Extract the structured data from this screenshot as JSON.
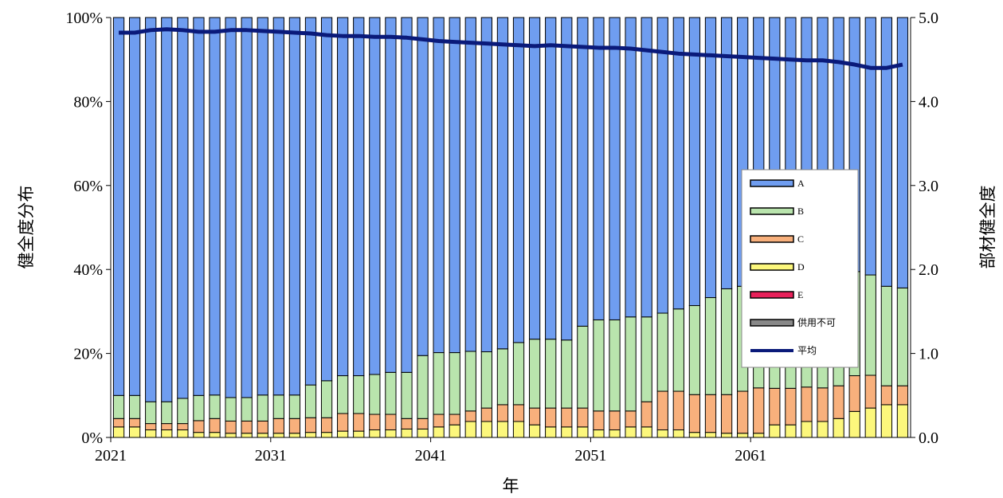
{
  "chart_data": {
    "type": "bar",
    "stacked": true,
    "xlabel": "年",
    "ylabel": "健全度分布",
    "y2label": "部材健全度",
    "ylim": [
      0,
      100
    ],
    "y2lim": [
      0,
      5
    ],
    "yticks": [
      "0%",
      "20%",
      "40%",
      "60%",
      "80%",
      "100%"
    ],
    "y2ticks": [
      "0.0",
      "1.0",
      "2.0",
      "3.0",
      "4.0",
      "5.0"
    ],
    "xtick_labels": [
      {
        "index": 0,
        "label": "2021"
      },
      {
        "index": 10,
        "label": "2031"
      },
      {
        "index": 20,
        "label": "2041"
      },
      {
        "index": 30,
        "label": "2051"
      },
      {
        "index": 40,
        "label": "2061"
      }
    ],
    "legend_position": "right",
    "colors": {
      "A": "#6f9df0",
      "B": "#b9e4ad",
      "C": "#f8b07c",
      "D": "#fcf77c",
      "E": "#e8205a",
      "供用不可": "#888888",
      "平均": "#0a1a7a"
    },
    "categories": [
      "2021",
      "2022",
      "2023",
      "2024",
      "2025",
      "2026",
      "2027",
      "2028",
      "2029",
      "2030",
      "2031",
      "2032",
      "2033",
      "2034",
      "2035",
      "2036",
      "2037",
      "2038",
      "2039",
      "2040",
      "2041",
      "2042",
      "2043",
      "2044",
      "2045",
      "2046",
      "2047",
      "2048",
      "2049",
      "2050",
      "2051",
      "2052",
      "2053",
      "2054",
      "2055",
      "2056",
      "2057",
      "2058",
      "2059",
      "2060",
      "2061",
      "2062",
      "2063",
      "2064",
      "2065",
      "2066",
      "2067",
      "2068",
      "2069",
      "2070"
    ],
    "series": [
      {
        "name": "供用不可",
        "kind": "bar",
        "values": [
          0,
          0,
          0,
          0,
          0,
          0,
          0,
          0,
          0,
          0,
          0,
          0,
          0,
          0,
          0,
          0,
          0,
          0,
          0,
          0,
          0,
          0,
          0,
          0,
          0,
          0,
          0,
          0,
          0,
          0,
          0,
          0,
          0,
          0,
          0,
          0,
          0,
          0,
          0,
          0,
          0,
          0,
          0,
          0,
          0,
          0,
          0,
          0,
          0,
          0
        ]
      },
      {
        "name": "E",
        "kind": "bar",
        "values": [
          0,
          0,
          0,
          0,
          0,
          0,
          0,
          0,
          0,
          0,
          0,
          0,
          0,
          0,
          0,
          0,
          0,
          0,
          0,
          0,
          0,
          0,
          0,
          0,
          0,
          0,
          0,
          0,
          0,
          0,
          0,
          0,
          0,
          0,
          0,
          0,
          0,
          0,
          0,
          0,
          0,
          0,
          0,
          0,
          0,
          0,
          0,
          0,
          0,
          0
        ]
      },
      {
        "name": "D",
        "kind": "bar",
        "values": [
          2.5,
          2.5,
          1.8,
          1.8,
          1.8,
          1.2,
          1.2,
          1.0,
          1.0,
          1.0,
          1.0,
          1.0,
          1.2,
          1.2,
          1.5,
          1.5,
          1.8,
          1.8,
          2.0,
          2.0,
          2.5,
          3.0,
          3.8,
          3.8,
          3.8,
          3.8,
          3.0,
          2.5,
          2.5,
          2.5,
          1.8,
          1.8,
          2.5,
          2.5,
          1.8,
          1.8,
          1.2,
          1.2,
          1.0,
          1.0,
          1.0,
          3.0,
          3.0,
          3.8,
          3.8,
          4.5,
          6.2,
          7.0,
          7.8,
          7.8
        ]
      },
      {
        "name": "C",
        "kind": "bar",
        "values": [
          2.0,
          2.0,
          1.5,
          1.5,
          1.5,
          2.8,
          3.3,
          2.9,
          2.9,
          2.9,
          3.5,
          3.5,
          3.5,
          3.5,
          4.2,
          4.2,
          3.7,
          3.7,
          2.5,
          2.5,
          3.0,
          2.5,
          2.5,
          3.2,
          4.0,
          4.0,
          4.0,
          4.5,
          4.5,
          4.5,
          4.5,
          4.5,
          3.8,
          6.0,
          9.2,
          9.2,
          9.0,
          9.0,
          9.2,
          10.0,
          10.8,
          8.7,
          8.7,
          8.2,
          8.0,
          7.8,
          8.5,
          7.8,
          4.5,
          4.5
        ]
      },
      {
        "name": "B",
        "kind": "bar",
        "values": [
          5.5,
          5.5,
          5.2,
          5.2,
          6.0,
          6.0,
          5.6,
          5.6,
          5.6,
          6.2,
          5.6,
          5.6,
          7.8,
          8.8,
          9.0,
          9.0,
          9.5,
          10.0,
          11.0,
          15.0,
          14.7,
          14.7,
          14.2,
          13.4,
          13.3,
          14.8,
          16.4,
          16.4,
          16.2,
          19.5,
          21.7,
          21.7,
          22.4,
          20.2,
          18.6,
          19.6,
          21.2,
          23.1,
          25.2,
          25.0,
          24.2,
          25.3,
          25.3,
          25.0,
          25.2,
          25.7,
          24.8,
          23.9,
          23.7,
          23.3
        ]
      },
      {
        "name": "A",
        "kind": "bar",
        "values": [
          90.0,
          90.0,
          91.5,
          91.5,
          90.7,
          90.0,
          89.9,
          90.5,
          90.5,
          89.9,
          89.9,
          89.9,
          87.5,
          86.5,
          85.3,
          85.3,
          85.0,
          84.5,
          84.5,
          80.5,
          79.8,
          79.8,
          79.5,
          79.6,
          78.9,
          77.4,
          76.6,
          76.6,
          76.8,
          73.5,
          72.0,
          72.0,
          71.3,
          71.3,
          70.4,
          69.4,
          68.6,
          66.7,
          64.6,
          64.0,
          64.0,
          63.0,
          63.0,
          63.0,
          63.0,
          62.0,
          60.5,
          61.3,
          64.0,
          64.4
        ]
      },
      {
        "name": "平均",
        "kind": "line",
        "axis": "right",
        "values": [
          4.82,
          4.82,
          4.85,
          4.86,
          4.85,
          4.83,
          4.83,
          4.85,
          4.85,
          4.84,
          4.83,
          4.82,
          4.81,
          4.79,
          4.78,
          4.78,
          4.77,
          4.77,
          4.76,
          4.74,
          4.72,
          4.71,
          4.7,
          4.69,
          4.68,
          4.67,
          4.66,
          4.67,
          4.66,
          4.65,
          4.64,
          4.64,
          4.63,
          4.61,
          4.59,
          4.57,
          4.56,
          4.55,
          4.54,
          4.53,
          4.52,
          4.51,
          4.5,
          4.49,
          4.49,
          4.47,
          4.44,
          4.4,
          4.4,
          4.44
        ]
      }
    ]
  }
}
